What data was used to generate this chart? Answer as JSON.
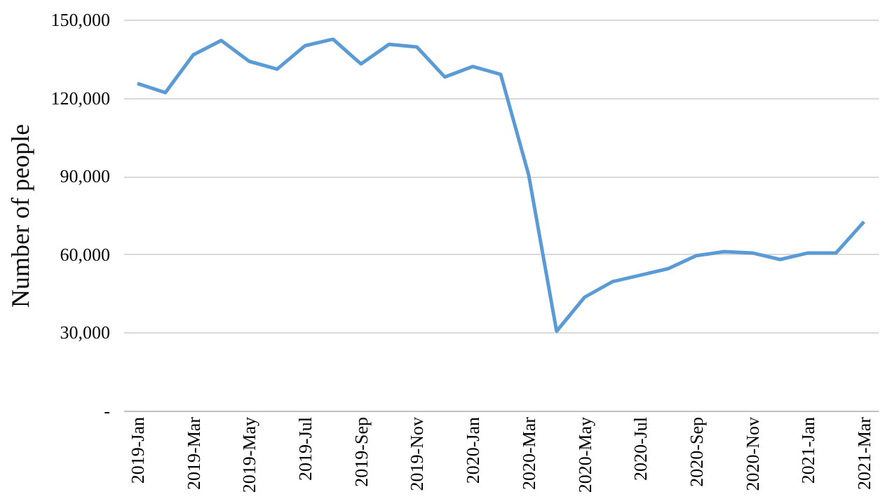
{
  "chart_data": {
    "type": "line",
    "ylabel": "Number of people",
    "categories": [
      "2019-Jan",
      null,
      "2019-Mar",
      null,
      "2019-May",
      null,
      "2019-Jul",
      null,
      "2019-Sep",
      null,
      "2019-Nov",
      null,
      "2020-Jan",
      null,
      "2020-Mar",
      null,
      "2020-May",
      null,
      "2020-Jul",
      null,
      "2020-Sep",
      null,
      "2020-Nov",
      null,
      "2021-Jan",
      null,
      "2021-Mar"
    ],
    "series": [
      {
        "color": "#5b9bd5",
        "values": [
          125500,
          122000,
          136500,
          142000,
          134000,
          131000,
          140000,
          142500,
          133000,
          140500,
          139500,
          128000,
          132000,
          129000,
          90500,
          30500,
          43500,
          49500,
          52000,
          54500,
          59500,
          61000,
          60500,
          58000,
          60500,
          60500,
          72500
        ]
      }
    ],
    "ylim": [
      0,
      150000
    ],
    "yticks": [
      {
        "value": 0,
        "label": "-"
      },
      {
        "value": 30000,
        "label": "30,000"
      },
      {
        "value": 60000,
        "label": "60,000"
      },
      {
        "value": 90000,
        "label": "90,000"
      },
      {
        "value": 120000,
        "label": "120,000"
      },
      {
        "value": 150000,
        "label": "150,000"
      }
    ],
    "grid": "y",
    "marker": "none",
    "line_style": "solid"
  }
}
